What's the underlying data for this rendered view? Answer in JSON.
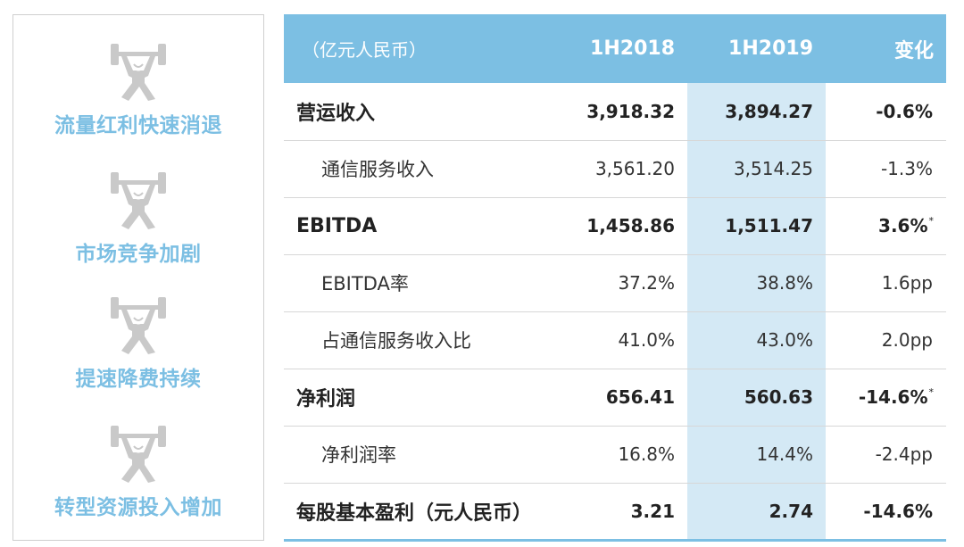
{
  "factors": [
    {
      "label": "流量红利快速消退",
      "icon": "weightlifter-icon"
    },
    {
      "label": "市场竞争加剧",
      "icon": "weightlifter-icon"
    },
    {
      "label": "提速降费持续",
      "icon": "weightlifter-icon"
    },
    {
      "label": "转型资源投入增加",
      "icon": "weightlifter-icon"
    }
  ],
  "table": {
    "headers": [
      "（亿元人民币）",
      "1H2018",
      "1H2019",
      "变化"
    ],
    "rows": [
      {
        "name": "营运收入",
        "v2018": "3,918.32",
        "v2019": "3,894.27",
        "change": "-0.6%",
        "note": ""
      },
      {
        "name": "通信服务收入",
        "v2018": "3,561.20",
        "v2019": "3,514.25",
        "change": "-1.3%",
        "note": ""
      },
      {
        "name": "EBITDA",
        "v2018": "1,458.86",
        "v2019": "1,511.47",
        "change": "3.6%",
        "note": "*"
      },
      {
        "name": "EBITDA率",
        "v2018": "37.2%",
        "v2019": "38.8%",
        "change": "1.6pp",
        "note": ""
      },
      {
        "name": "占通信服务收入比",
        "v2018": "41.0%",
        "v2019": "43.0%",
        "change": "2.0pp",
        "note": ""
      },
      {
        "name": "净利润",
        "v2018": "656.41",
        "v2019": "560.63",
        "change": "-14.6%",
        "note": "*"
      },
      {
        "name": "净利润率",
        "v2018": "16.8%",
        "v2019": "14.4%",
        "change": "-2.4pp",
        "note": ""
      },
      {
        "name": "每股基本盈利（元人民币）",
        "v2018": "3.21",
        "v2019": "2.74",
        "change": "-14.6%",
        "note": ""
      }
    ]
  },
  "colors": {
    "accent": "#7cbfe3",
    "highlight": "#d4e9f5",
    "icon": "#c9c9c9"
  }
}
